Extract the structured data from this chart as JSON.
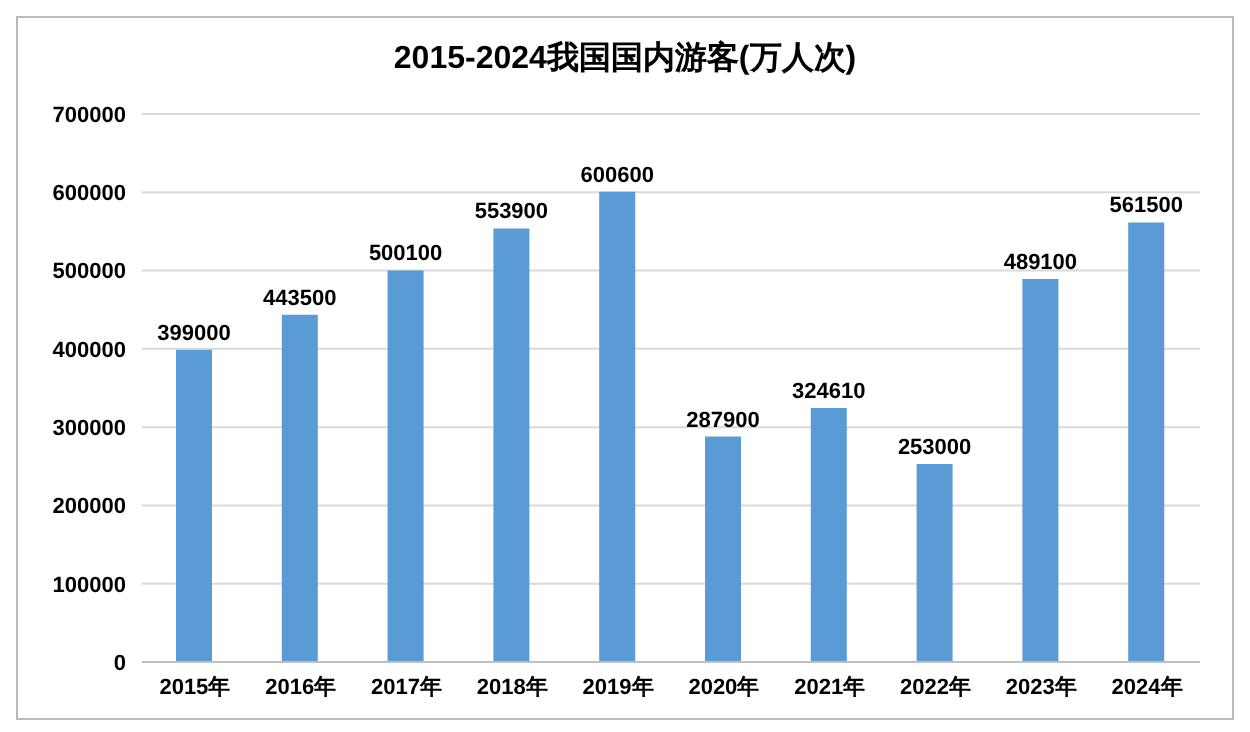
{
  "chart_data": {
    "type": "bar",
    "title": "2015-2024我国国内游客(万人次)",
    "categories": [
      "2015年",
      "2016年",
      "2017年",
      "2018年",
      "2019年",
      "2020年",
      "2021年",
      "2022年",
      "2023年",
      "2024年"
    ],
    "values": [
      399000,
      443500,
      500100,
      553900,
      600600,
      287900,
      324610,
      253000,
      489100,
      561500
    ],
    "color": "#5b9bd5",
    "ylim": [
      0,
      700000
    ],
    "yticks": [
      0,
      100000,
      200000,
      300000,
      400000,
      500000,
      600000,
      700000
    ],
    "grid": "y",
    "data_labels": true,
    "legend": false
  }
}
